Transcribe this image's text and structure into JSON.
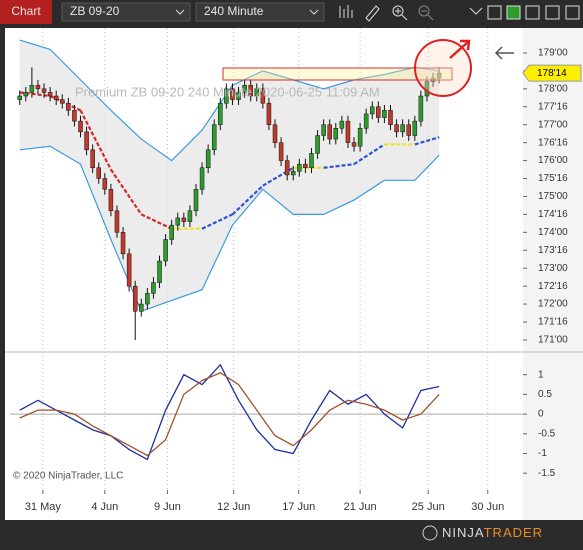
{
  "toolbar": {
    "app_label": "Chart",
    "instrument": "ZB 09-20",
    "interval": "240 Minute"
  },
  "logo": {
    "left": "NINJA",
    "right": "TRADER"
  },
  "chart_data": {
    "type": "candlestick",
    "title": "Premium   ZB 09-20   240 Minute   2020-06-25 11:09 AM",
    "copyright": "© 2020 NinjaTrader, LLC",
    "x": [
      0,
      1,
      2,
      3,
      4,
      5,
      6,
      7,
      8,
      9,
      10,
      11,
      12,
      13,
      14,
      15,
      16,
      17,
      18,
      19,
      20,
      21,
      22,
      23,
      24,
      25,
      26,
      27,
      28,
      29,
      30,
      31,
      32,
      33,
      34,
      35,
      36,
      37,
      38,
      39,
      40,
      41,
      42,
      43,
      44,
      45,
      46,
      47,
      48,
      49,
      50,
      51,
      52,
      53,
      54,
      55,
      56,
      57,
      58,
      59,
      60,
      61,
      62,
      63,
      64,
      65,
      66,
      67,
      68,
      69
    ],
    "open": [
      177.7,
      177.8,
      177.9,
      178.1,
      178.0,
      177.9,
      177.8,
      177.7,
      177.6,
      177.4,
      177.1,
      176.8,
      176.3,
      175.8,
      175.5,
      175.2,
      174.6,
      174.0,
      173.4,
      172.5,
      171.8,
      172.0,
      172.3,
      172.6,
      173.2,
      173.8,
      174.2,
      174.4,
      174.3,
      174.6,
      175.2,
      175.8,
      176.3,
      177.0,
      177.6,
      178.0,
      177.7,
      177.9,
      178.1,
      177.8,
      178.0,
      177.6,
      177.0,
      176.5,
      176.0,
      175.6,
      175.7,
      175.9,
      175.8,
      176.2,
      176.7,
      177.0,
      176.6,
      176.9,
      177.1,
      176.5,
      176.4,
      176.9,
      177.3,
      177.5,
      177.2,
      177.4,
      177.0,
      176.8,
      177.0,
      176.7,
      177.1,
      177.8,
      178.2,
      178.3
    ],
    "high": [
      177.95,
      178.05,
      178.6,
      178.25,
      178.15,
      178.05,
      177.95,
      177.85,
      177.75,
      177.55,
      177.25,
      176.95,
      176.45,
      175.95,
      175.65,
      175.35,
      174.75,
      174.15,
      173.55,
      172.65,
      172.15,
      172.45,
      172.75,
      173.35,
      173.95,
      174.35,
      174.55,
      174.55,
      174.75,
      175.35,
      175.95,
      176.45,
      177.15,
      177.75,
      178.15,
      178.15,
      178.05,
      178.25,
      178.25,
      178.15,
      178.15,
      177.75,
      177.15,
      176.65,
      176.15,
      175.85,
      176.05,
      176.05,
      176.35,
      176.85,
      177.15,
      177.15,
      177.05,
      177.25,
      177.25,
      176.65,
      177.05,
      177.45,
      177.65,
      177.65,
      177.55,
      177.55,
      177.15,
      177.15,
      177.15,
      177.25,
      177.95,
      178.35,
      178.45,
      178.6
    ],
    "low": [
      177.55,
      177.65,
      177.75,
      177.85,
      177.75,
      177.65,
      177.55,
      177.45,
      177.25,
      176.95,
      176.65,
      176.15,
      175.65,
      175.35,
      175.05,
      174.45,
      173.85,
      173.25,
      172.35,
      171.0,
      171.65,
      171.85,
      172.15,
      172.45,
      173.05,
      173.65,
      174.05,
      174.15,
      174.15,
      174.45,
      175.05,
      175.65,
      176.15,
      176.85,
      177.45,
      177.55,
      177.55,
      177.75,
      177.65,
      177.65,
      177.45,
      176.85,
      176.35,
      175.85,
      175.45,
      175.45,
      175.55,
      175.65,
      175.65,
      176.05,
      176.55,
      176.45,
      176.45,
      176.75,
      176.35,
      176.25,
      176.25,
      176.75,
      177.15,
      177.05,
      177.05,
      176.85,
      176.65,
      176.65,
      176.55,
      176.55,
      176.95,
      177.65,
      178.05,
      178.15
    ],
    "close": [
      177.8,
      177.9,
      178.1,
      178.0,
      177.9,
      177.8,
      177.7,
      177.6,
      177.4,
      177.1,
      176.8,
      176.3,
      175.8,
      175.5,
      175.2,
      174.6,
      174.0,
      173.4,
      172.5,
      171.8,
      172.0,
      172.3,
      172.6,
      173.2,
      173.8,
      174.2,
      174.4,
      174.3,
      174.6,
      175.2,
      175.8,
      176.3,
      177.0,
      177.6,
      178.0,
      177.7,
      177.9,
      178.1,
      177.8,
      178.0,
      177.6,
      177.0,
      176.5,
      176.0,
      175.6,
      175.7,
      175.9,
      175.8,
      176.2,
      176.7,
      177.0,
      176.6,
      176.9,
      177.1,
      176.5,
      176.4,
      176.9,
      177.3,
      177.5,
      177.2,
      177.4,
      177.0,
      176.8,
      177.0,
      176.7,
      177.1,
      177.8,
      178.2,
      178.3,
      178.44
    ],
    "up_color": "#2e9b2e",
    "down_color": "#c0392b",
    "bands": {
      "color": "#3b9be0",
      "fill": "#e4e4e4",
      "x": [
        0,
        5,
        10,
        15,
        20,
        25,
        30,
        35,
        40,
        45,
        50,
        55,
        60,
        65,
        69
      ],
      "upper": [
        179.36,
        179.1,
        178.25,
        177.4,
        176.6,
        176.0,
        176.85,
        178.1,
        178.5,
        178.25,
        178.0,
        178.25,
        178.4,
        178.6,
        178.5
      ],
      "lower": [
        176.3,
        176.4,
        175.9,
        173.8,
        171.8,
        172.1,
        172.4,
        174.2,
        175.2,
        174.5,
        174.5,
        174.9,
        175.45,
        175.45,
        176.15
      ]
    },
    "ma": {
      "up_color": "#2a55d4",
      "down_color": "#d42a2a",
      "flat_color": "#f0e020",
      "x": [
        0,
        5,
        10,
        15,
        20,
        25,
        30,
        35,
        40,
        45,
        50,
        55,
        60,
        65,
        69
      ],
      "values": [
        177.9,
        177.8,
        177.4,
        175.75,
        174.5,
        174.1,
        174.1,
        174.5,
        175.3,
        175.8,
        175.8,
        175.9,
        176.45,
        176.45,
        176.65
      ]
    },
    "xlim": [
      -1.6,
      82.8
    ],
    "xticks": [
      {
        "value": 3.8,
        "label": "31 May"
      },
      {
        "value": 14,
        "label": "4 Jun"
      },
      {
        "value": 24.3,
        "label": "9 Jun"
      },
      {
        "value": 35.2,
        "label": "12 Jun"
      },
      {
        "value": 45.9,
        "label": "17 Jun"
      },
      {
        "value": 56,
        "label": "21 Jun"
      },
      {
        "value": 67.2,
        "label": "25 Jun"
      },
      {
        "value": 77,
        "label": "30 Jun"
      }
    ],
    "ylim": [
      170.72,
      179.64
    ],
    "yticks": [
      {
        "value": 171,
        "label": "171'00"
      },
      {
        "value": 171.5,
        "label": "171'16"
      },
      {
        "value": 172,
        "label": "172'00"
      },
      {
        "value": 172.5,
        "label": "172'16"
      },
      {
        "value": 173,
        "label": "173'00"
      },
      {
        "value": 173.5,
        "label": "173'16"
      },
      {
        "value": 174,
        "label": "174'00"
      },
      {
        "value": 174.5,
        "label": "174'16"
      },
      {
        "value": 175,
        "label": "175'00"
      },
      {
        "value": 175.5,
        "label": "175'16"
      },
      {
        "value": 176,
        "label": "176'00"
      },
      {
        "value": 176.5,
        "label": "176'16"
      },
      {
        "value": 177,
        "label": "177'00"
      },
      {
        "value": 177.5,
        "label": "177'16"
      },
      {
        "value": 178,
        "label": "178'00"
      },
      {
        "value": 178.5,
        "label": "178'16"
      },
      {
        "value": 179,
        "label": "179'00"
      }
    ],
    "last_price": {
      "value": 178.4375,
      "label": "178'14"
    },
    "oscillator": {
      "ylim": [
        -1.8,
        1.5
      ],
      "yticks": [
        1,
        0.5,
        0,
        -0.5,
        -1,
        -1.5
      ],
      "reference_line": 0,
      "series": [
        {
          "color": "#1f2fa0",
          "x": [
            0,
            3,
            6,
            9,
            12,
            15,
            18,
            21,
            24,
            27,
            30,
            33,
            36,
            39,
            42,
            45,
            48,
            51,
            54,
            57,
            60,
            63,
            66,
            69
          ],
          "values": [
            0.1,
            0.35,
            0.1,
            -0.15,
            -0.4,
            -0.55,
            -0.9,
            -1.15,
            0.1,
            1.0,
            0.75,
            1.25,
            0.35,
            -0.4,
            -0.9,
            -1.0,
            -0.15,
            0.6,
            0.25,
            0.5,
            0,
            -0.35,
            0.6,
            0.7
          ]
        },
        {
          "color": "#a0522d",
          "x": [
            0,
            3,
            6,
            9,
            12,
            15,
            18,
            21,
            24,
            27,
            30,
            33,
            36,
            39,
            42,
            45,
            48,
            51,
            54,
            57,
            60,
            63,
            66,
            69
          ],
          "values": [
            -0.1,
            0.1,
            0.1,
            0,
            -0.3,
            -0.55,
            -0.8,
            -1.05,
            -0.65,
            0.5,
            0.85,
            1.05,
            0.75,
            0.1,
            -0.55,
            -0.8,
            -0.4,
            0.1,
            0.35,
            0.25,
            0.1,
            -0.15,
            0,
            0.5
          ]
        }
      ]
    }
  }
}
